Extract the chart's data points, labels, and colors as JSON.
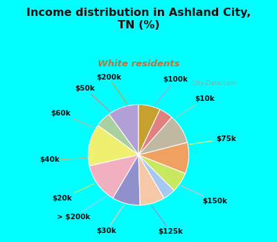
{
  "title": "Income distribution in Ashland City,\nTN (%)",
  "subtitle": "White residents",
  "title_color": "#111111",
  "subtitle_color": "#b07840",
  "bg_cyan": "#00FFFF",
  "bg_chart": "#dff0e8",
  "watermark": "   City-Data.com",
  "labels": [
    "$100k",
    "$10k",
    "$75k",
    "$150k",
    "$125k",
    "$30k",
    "> $200k",
    "$20k",
    "$40k",
    "$60k",
    "$50k",
    "$200k"
  ],
  "values": [
    10.0,
    5.0,
    13.5,
    13.0,
    9.0,
    8.0,
    4.0,
    6.5,
    10.0,
    9.5,
    4.5,
    7.0
  ],
  "colors": [
    "#b0a0d5",
    "#aad0a0",
    "#f0f070",
    "#f0b0c0",
    "#9090cc",
    "#f5c8a8",
    "#a8c8f0",
    "#c8e860",
    "#f0a060",
    "#c0b8a0",
    "#e08080",
    "#c8a030"
  ],
  "line_colors": [
    "#b0a0d5",
    "#aad0a0",
    "#f0f070",
    "#f0b0c0",
    "#9090cc",
    "#f5c8a8",
    "#a8c8f0",
    "#c8e860",
    "#f0a060",
    "#c0b8a0",
    "#e08080",
    "#c8a030"
  ],
  "startangle": 90,
  "label_fontsize": 7.5,
  "label_color": "#111111"
}
